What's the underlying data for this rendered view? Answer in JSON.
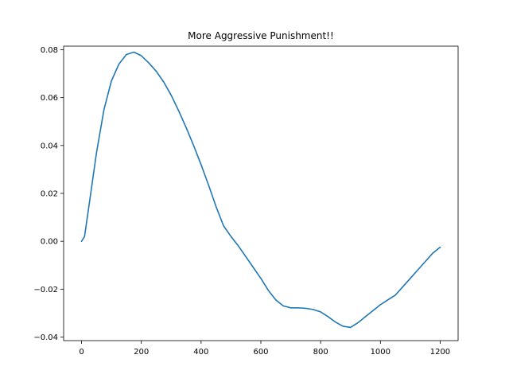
{
  "chart_data": {
    "type": "line",
    "title": "More Aggressive Punishment!!",
    "xlabel": "",
    "ylabel": "",
    "xlim": [
      -60,
      1260
    ],
    "ylim": [
      -0.0415,
      0.0815
    ],
    "xticks": [
      0,
      200,
      400,
      600,
      800,
      1000,
      1200
    ],
    "yticks": [
      -0.04,
      -0.02,
      0.0,
      0.02,
      0.04,
      0.06,
      0.08
    ],
    "xtick_labels": [
      "0",
      "200",
      "400",
      "600",
      "800",
      "1000",
      "1200"
    ],
    "ytick_labels": [
      "−0.04",
      "−0.02",
      "0.00",
      "0.02",
      "0.04",
      "0.06",
      "0.08"
    ],
    "grid": false,
    "legend": "none",
    "series": [
      {
        "color": "#1f77b4",
        "x": [
          0,
          10,
          25,
          50,
          75,
          100,
          125,
          150,
          175,
          200,
          225,
          250,
          275,
          300,
          325,
          350,
          375,
          400,
          425,
          450,
          475,
          500,
          525,
          550,
          575,
          600,
          625,
          650,
          675,
          700,
          725,
          750,
          775,
          800,
          825,
          850,
          875,
          900,
          925,
          950,
          975,
          1000,
          1025,
          1050,
          1075,
          1100,
          1125,
          1150,
          1175,
          1200
        ],
        "y": [
          0.0,
          0.002,
          0.015,
          0.037,
          0.055,
          0.067,
          0.074,
          0.078,
          0.079,
          0.0775,
          0.0745,
          0.071,
          0.0665,
          0.061,
          0.0545,
          0.0475,
          0.04,
          0.032,
          0.0235,
          0.0145,
          0.0065,
          0.002,
          -0.002,
          -0.0065,
          -0.011,
          -0.0155,
          -0.0205,
          -0.0245,
          -0.027,
          -0.0278,
          -0.0278,
          -0.028,
          -0.0285,
          -0.0295,
          -0.0315,
          -0.0338,
          -0.0355,
          -0.036,
          -0.034,
          -0.0315,
          -0.029,
          -0.0265,
          -0.0245,
          -0.0225,
          -0.019,
          -0.0155,
          -0.012,
          -0.0085,
          -0.005,
          -0.0025
        ]
      }
    ]
  }
}
